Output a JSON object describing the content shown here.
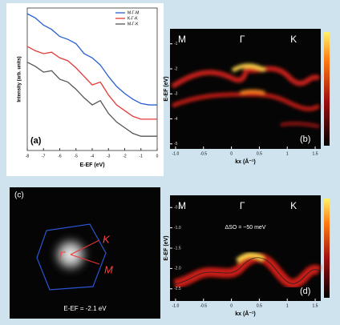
{
  "chart_data": [
    {
      "type": "line",
      "label": "(a)",
      "y_label": "Intensity (arb. units)",
      "x_label": "E-EF (eV)",
      "x": [
        -8,
        -7.5,
        -7,
        -6.5,
        -6,
        -5.5,
        -5,
        -4.5,
        -4,
        -3.5,
        -3,
        -2.5,
        -2,
        -1.5,
        -1,
        -0.5,
        0
      ],
      "xlim": [
        -8,
        0
      ],
      "xticks": [
        -8,
        -7,
        -6,
        -5,
        -4,
        -3,
        -2,
        -1,
        0
      ],
      "ylim": [
        0,
        10
      ],
      "legend": "top-right",
      "series": [
        {
          "name": "M-Γ-M",
          "color": "#2a5fd0",
          "values": [
            9.6,
            9.3,
            8.8,
            8.5,
            8.0,
            7.8,
            7.5,
            6.8,
            6.5,
            6.0,
            5.2,
            4.5,
            4.0,
            3.6,
            3.3,
            3.2,
            3.2
          ]
        },
        {
          "name": "K-Γ-K",
          "color": "#e23a3a",
          "values": [
            7.3,
            7.0,
            6.8,
            6.9,
            6.5,
            6.3,
            5.8,
            5.2,
            4.6,
            4.8,
            3.9,
            3.2,
            2.8,
            2.4,
            2.2,
            2.2,
            2.2
          ]
        },
        {
          "name": "M-Γ-K",
          "color": "#555555",
          "values": [
            6.2,
            5.9,
            5.5,
            5.6,
            5.0,
            4.8,
            4.3,
            3.7,
            3.2,
            3.5,
            2.6,
            2.0,
            1.6,
            1.2,
            1.0,
            1.0,
            1.0
          ]
        }
      ]
    },
    {
      "type": "heatmap",
      "label": "(b)",
      "y_label": "E-EF (eV)",
      "x_label": "kx (Å⁻¹)",
      "points": [
        "M",
        "Γ",
        "K"
      ],
      "xlim": [
        -1.1,
        1.6
      ],
      "xticks": [
        {
          "value": -1,
          "label": "-1.0"
        },
        -0.5,
        0,
        0.5,
        1,
        1.5
      ],
      "ylim": [
        -5.2,
        -0.4
      ],
      "yticks": [
        -1,
        -2,
        -3,
        -4,
        -5
      ]
    },
    {
      "type": "image",
      "label": "(c)",
      "points": [
        "K",
        "Γ",
        "M"
      ],
      "caption": "E-EF = -2.1 eV"
    },
    {
      "type": "heatmap",
      "label": "(d)",
      "y_label": "E-EF (eV)",
      "x_label": "kx (Å⁻¹)",
      "points": [
        "M",
        "Γ",
        "K"
      ],
      "annotation": "ΔSO = ~50 meV",
      "xlim": [
        -1.1,
        1.6
      ],
      "xticks": [
        {
          "value": -1,
          "label": "-1.0"
        },
        -0.5,
        0,
        0.5,
        1,
        1.5
      ],
      "ylim": [
        -2.8,
        -0.2
      ],
      "yticks": [
        {
          "value": -0.5,
          "label": "-0.5"
        },
        {
          "value": -1,
          "label": "-1.0"
        },
        -1.5,
        {
          "value": -2,
          "label": "-2.0"
        },
        -2.5
      ]
    }
  ]
}
